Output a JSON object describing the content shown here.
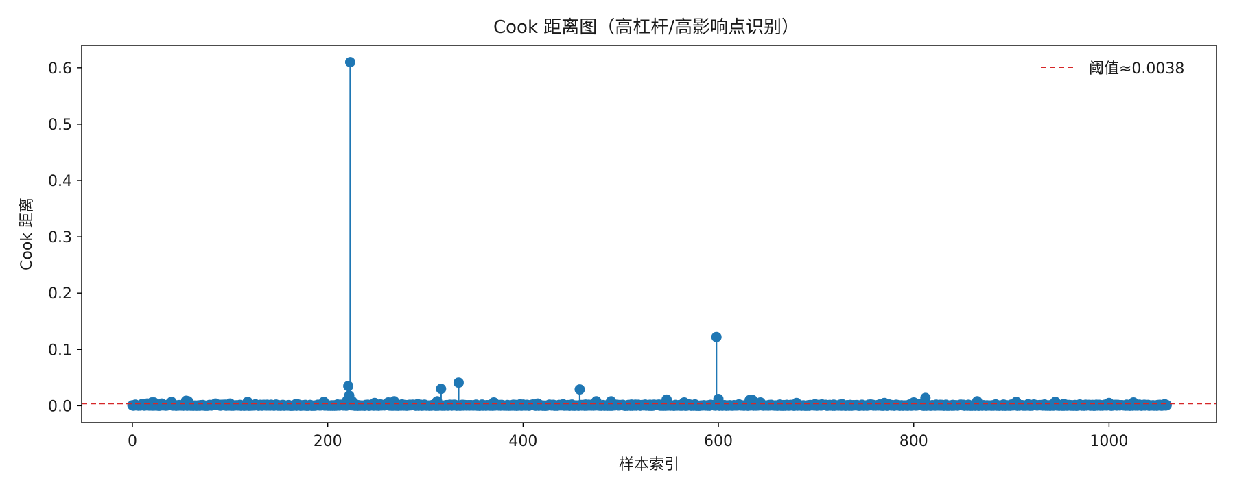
{
  "chart_data": {
    "type": "scatter",
    "subtype": "stem",
    "title": "Cook 距离图（高杠杆/高影响点识别）",
    "xlabel": "样本索引",
    "ylabel": "Cook 距离",
    "xlim": [
      -52,
      1110
    ],
    "ylim": [
      -0.03,
      0.64
    ],
    "xticks": [
      0,
      200,
      400,
      600,
      800,
      1000
    ],
    "xtick_labels": [
      "0",
      "200",
      "400",
      "600",
      "800",
      "1000"
    ],
    "yticks": [
      0.0,
      0.1,
      0.2,
      0.3,
      0.4,
      0.5,
      0.6
    ],
    "ytick_labels": [
      "0.0",
      "0.1",
      "0.2",
      "0.3",
      "0.4",
      "0.5",
      "0.6"
    ],
    "grid": false,
    "legend": {
      "placement": "top-right",
      "entries": [
        {
          "label": "阈值≈0.0038",
          "style": "dashed",
          "color": "#d62728"
        }
      ]
    },
    "threshold": {
      "value": 0.0038,
      "label": "阈值≈0.0038",
      "color": "#d62728"
    },
    "series": [
      {
        "color": "#1f77b4",
        "n": 1060,
        "baseline_max": 0.003,
        "x_notable": [
          221,
          222,
          223,
          3,
          10,
          15,
          20,
          22,
          30,
          40,
          55,
          57,
          85,
          100,
          118,
          196,
          218,
          220,
          225,
          248,
          262,
          268,
          312,
          316,
          334,
          370,
          415,
          458,
          475,
          490,
          547,
          565,
          598,
          600,
          632,
          635,
          643,
          680,
          770,
          800,
          812,
          865,
          905,
          945,
          1000,
          1025
        ],
        "y_notable": [
          0.035,
          0.018,
          0.61,
          0.002,
          0.003,
          0.004,
          0.006,
          0.006,
          0.004,
          0.007,
          0.009,
          0.008,
          0.004,
          0.004,
          0.007,
          0.007,
          0.005,
          0.01,
          0.008,
          0.005,
          0.006,
          0.008,
          0.008,
          0.03,
          0.041,
          0.006,
          0.004,
          0.029,
          0.008,
          0.008,
          0.011,
          0.006,
          0.122,
          0.012,
          0.01,
          0.01,
          0.006,
          0.005,
          0.005,
          0.006,
          0.014,
          0.008,
          0.007,
          0.007,
          0.005,
          0.006
        ]
      }
    ]
  }
}
